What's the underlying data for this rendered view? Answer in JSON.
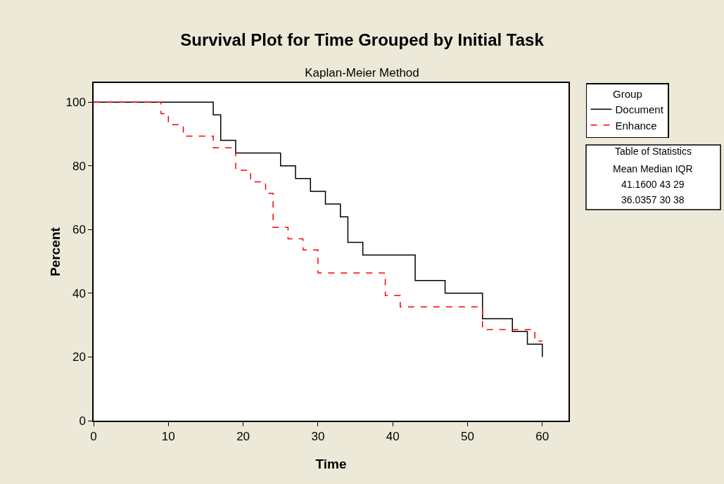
{
  "chart_data": {
    "type": "step",
    "title": "Survival Plot for Time Grouped by Initial Task",
    "subtitle": "Kaplan-Meier Method",
    "xlabel": "Time",
    "ylabel": "Percent",
    "legend_title": "Group",
    "series": [
      {
        "name": "Document",
        "color": "#000000",
        "line_style": "solid",
        "x": [
          0,
          16,
          17,
          19,
          25,
          27,
          29,
          31,
          33,
          34,
          36,
          43,
          47,
          52,
          56,
          58,
          60
        ],
        "values": [
          100,
          96,
          88,
          84,
          80,
          76,
          72,
          68,
          64,
          56,
          52,
          44,
          40,
          32,
          28,
          24,
          20
        ]
      },
      {
        "name": "Enhance",
        "color": "#ff0000",
        "line_style": "dashed",
        "x": [
          0,
          9,
          10,
          12,
          16,
          19,
          21,
          23,
          24,
          26,
          28,
          30,
          39,
          41,
          52,
          59,
          60
        ],
        "values": [
          100,
          96.4,
          92.9,
          89.3,
          85.7,
          78.6,
          75,
          71.4,
          60.7,
          57.1,
          53.6,
          46.4,
          39.3,
          35.7,
          28.6,
          25,
          25
        ]
      }
    ],
    "xlim": [
      0,
      63.5
    ],
    "xticks": [
      0,
      10,
      20,
      30,
      40,
      50,
      60
    ],
    "ylim": [
      0,
      106
    ],
    "yticks": [
      0,
      20,
      40,
      60,
      80,
      100
    ],
    "grid": false,
    "legend": "top right",
    "marker": "none",
    "annotations": [
      "Table of Statistics",
      "Mean Median IQR",
      "41.1600 43 29",
      "36.0357 30 38"
    ]
  }
}
